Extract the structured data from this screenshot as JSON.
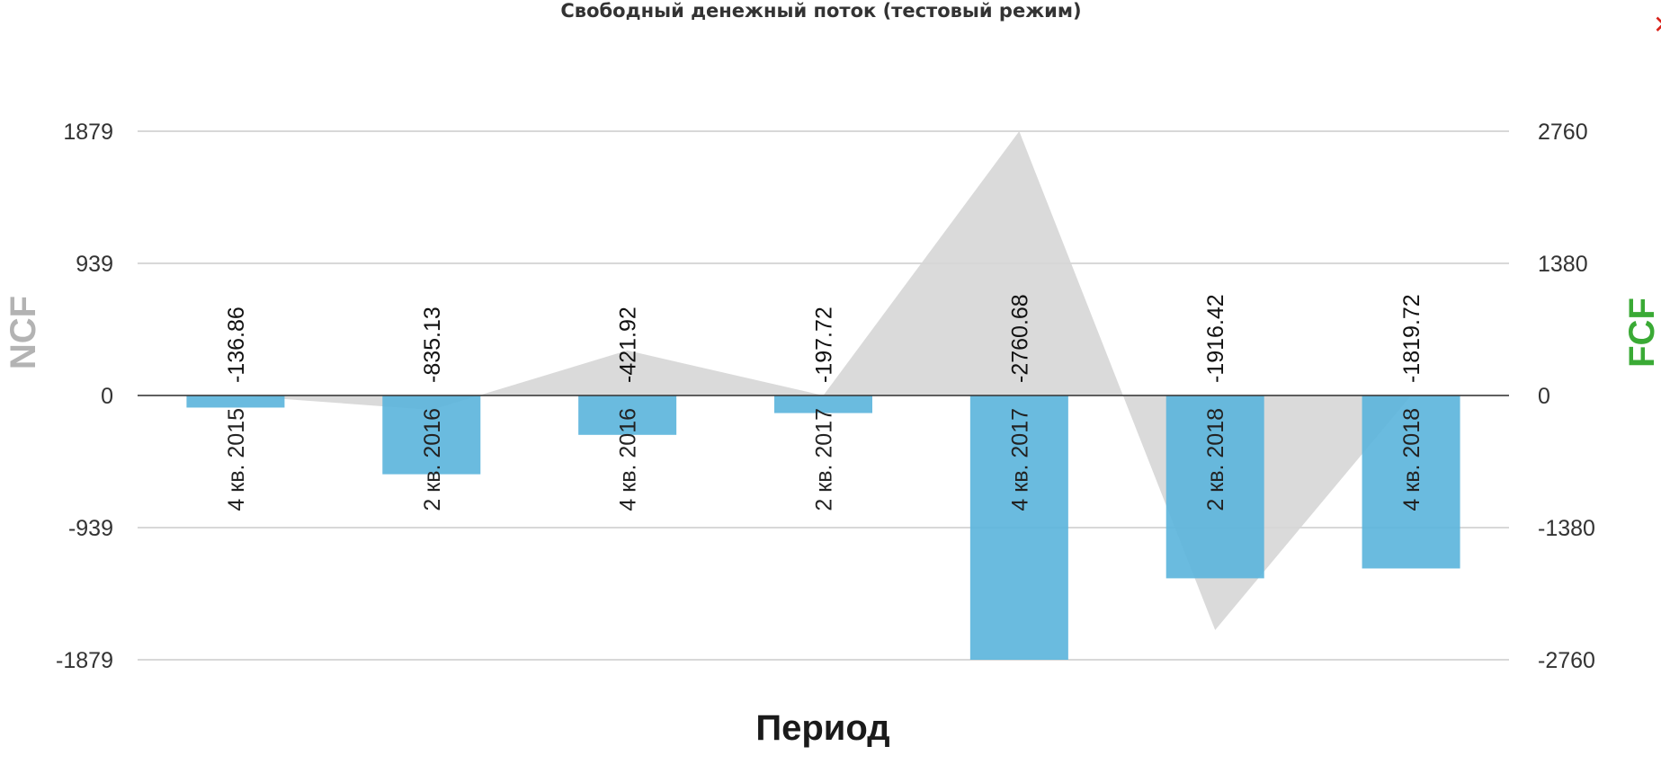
{
  "close_symbol": "✕",
  "chart_data": {
    "type": "bar",
    "title": "Свободный денежный поток (тестовый режим)",
    "xlabel": "Период",
    "ylabel_left": "NCF",
    "ylabel_right": "FCF",
    "categories": [
      "4 кв. 2015",
      "2 кв. 2016",
      "4 кв. 2016",
      "2 кв. 2017",
      "4 кв. 2017",
      "2 кв. 2018",
      "4 кв. 2018"
    ],
    "series": [
      {
        "name": "NCF",
        "type": "bar",
        "axis": "left",
        "color": "#5ab4dc",
        "values": [
          -86,
          -560,
          -280,
          -125,
          -1879,
          -1300,
          -1230
        ]
      },
      {
        "name": "FCF",
        "type": "area",
        "axis": "right",
        "color": "#d6d6d6",
        "values": [
          -136.86,
          -835.13,
          -421.92,
          -197.72,
          -2760.68,
          -1916.42,
          -1819.72
        ],
        "data_labels": [
          "-136.86",
          "-835.13",
          "-421.92",
          "-197.72",
          "-2760.68",
          "-1916.42",
          "-1819.72"
        ]
      }
    ],
    "area_path_values": [
      0,
      -150,
      470,
      0,
      2760,
      -2450,
      0
    ],
    "y_left": {
      "ticks": [
        "1879",
        "939",
        "0",
        "-939",
        "-1879"
      ],
      "range": [
        -1879,
        1879
      ]
    },
    "y_right": {
      "ticks": [
        "2760",
        "1380",
        "0",
        "-1380",
        "-2760"
      ],
      "range": [
        -2760,
        2760
      ]
    },
    "ylabel_left_color": "#b3b3b3",
    "ylabel_right_color": "#3aaa35",
    "grid": true,
    "legend": "none"
  }
}
